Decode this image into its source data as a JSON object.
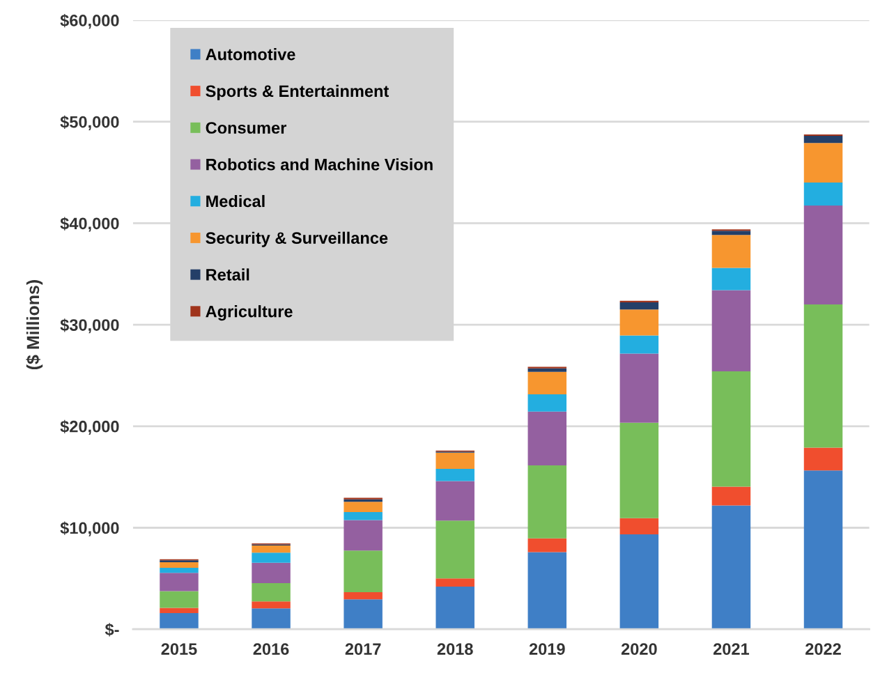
{
  "chart_data": {
    "type": "bar",
    "stacked": true,
    "ylabel": "($ Millions)",
    "categories": [
      "2015",
      "2016",
      "2017",
      "2018",
      "2019",
      "2020",
      "2021",
      "2022"
    ],
    "series": [
      {
        "name": "Automotive",
        "color": "#3f7fc6",
        "values": [
          1600,
          2050,
          2950,
          4200,
          7600,
          9350,
          12200,
          15650
        ]
      },
      {
        "name": "Sports & Entertainment",
        "color": "#f04e2e",
        "values": [
          500,
          700,
          700,
          800,
          1350,
          1600,
          1850,
          2250
        ]
      },
      {
        "name": "Consumer",
        "color": "#78be5a",
        "values": [
          1650,
          1800,
          4100,
          5700,
          7200,
          9400,
          11350,
          14100
        ]
      },
      {
        "name": "Robotics and Machine Vision",
        "color": "#9460a0",
        "values": [
          1800,
          2000,
          3000,
          3900,
          5300,
          6800,
          8000,
          9750
        ]
      },
      {
        "name": "Medical",
        "color": "#23aee0",
        "values": [
          500,
          1000,
          800,
          1200,
          1700,
          1800,
          2200,
          2250
        ]
      },
      {
        "name": "Security & Surveillance",
        "color": "#f7962f",
        "values": [
          550,
          700,
          1000,
          1600,
          2200,
          2550,
          3250,
          3900
        ]
      },
      {
        "name": "Retail",
        "color": "#243f68",
        "values": [
          200,
          100,
          250,
          100,
          350,
          700,
          400,
          700
        ]
      },
      {
        "name": "Agriculture",
        "color": "#a0341c",
        "values": [
          100,
          100,
          150,
          100,
          150,
          150,
          150,
          150
        ]
      }
    ],
    "ylim": [
      0,
      60000
    ],
    "yticks": [
      {
        "value": 0,
        "label": "$-"
      },
      {
        "value": 10000,
        "label": "$10,000"
      },
      {
        "value": 20000,
        "label": "$20,000"
      },
      {
        "value": 30000,
        "label": "$30,000"
      },
      {
        "value": 40000,
        "label": "$40,000"
      },
      {
        "value": 50000,
        "label": "$50,000"
      },
      {
        "value": 60000,
        "label": "$60,000"
      }
    ],
    "grid": "y",
    "legend": "top left"
  }
}
